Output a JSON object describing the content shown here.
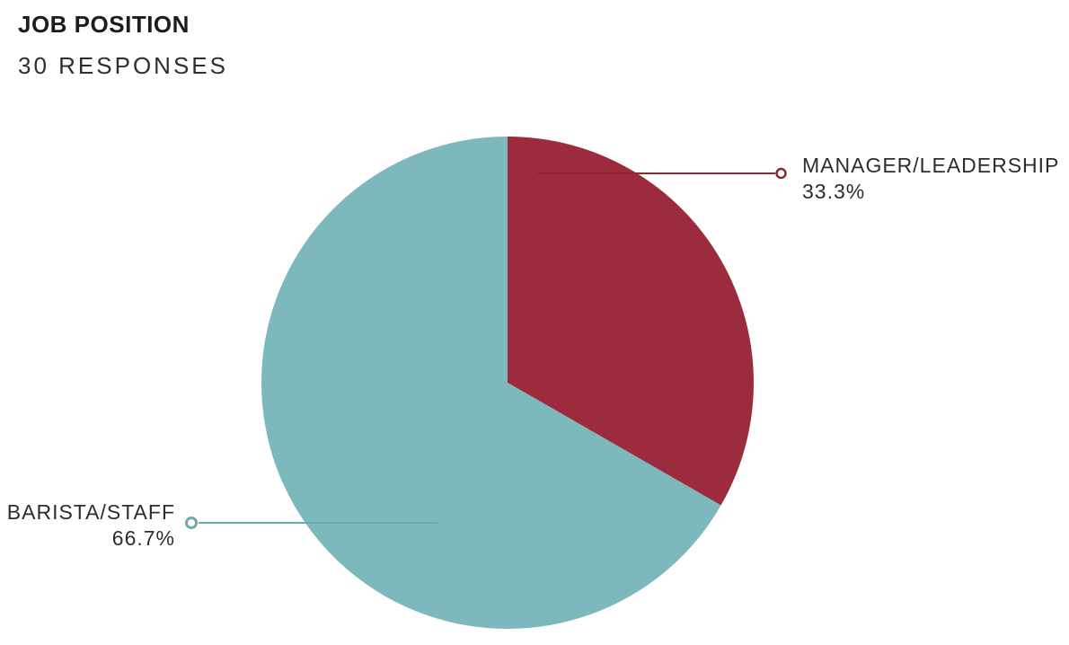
{
  "header": {
    "title": "JOB POSITION",
    "subtitle": "30 RESPONSES"
  },
  "chart_data": {
    "type": "pie",
    "title": "JOB POSITION",
    "subtitle": "30 RESPONSES",
    "responses_count": 30,
    "start_angle_deg": 0,
    "direction": "clockwise",
    "legend_position": "callout-labels",
    "background_color": "#ffffff",
    "slices": [
      {
        "label": "MANAGER/LEADERSHIP",
        "pct": 33.3,
        "pct_label": "33.3%",
        "color": "#9C2B3D",
        "leader_color": "#8C2636"
      },
      {
        "label": "BARISTA/STAFF",
        "pct": 66.7,
        "pct_label": "66.7%",
        "color": "#7DB8BC",
        "leader_color": "#6FA9AF"
      }
    ]
  }
}
